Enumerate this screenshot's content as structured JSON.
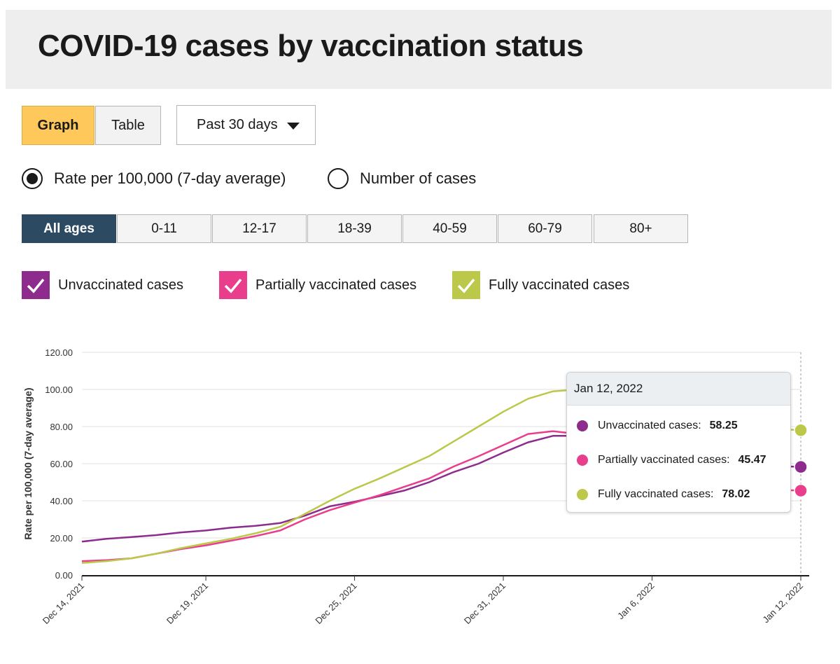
{
  "header": {
    "title": "COVID-19 cases by vaccination status"
  },
  "view_toggle": {
    "graph_label": "Graph",
    "table_label": "Table"
  },
  "period": {
    "selected": "Past 30 days"
  },
  "measure": {
    "options": [
      {
        "label": "Rate per 100,000 (7-day average)",
        "checked": true
      },
      {
        "label": "Number of cases",
        "checked": false
      }
    ]
  },
  "age_groups": [
    "All ages",
    "0-11",
    "12-17",
    "18-39",
    "40-59",
    "60-79",
    "80+"
  ],
  "age_selected": "All ages",
  "legend": [
    {
      "label": "Unvaccinated cases",
      "color": "#8e2c8e",
      "checked": true
    },
    {
      "label": "Partially vaccinated cases",
      "color": "#e83e8c",
      "checked": true
    },
    {
      "label": "Fully vaccinated cases",
      "color": "#bcc84a",
      "checked": true
    }
  ],
  "tooltip": {
    "date": "Jan 12, 2022",
    "rows": [
      {
        "label": "Unvaccinated cases:",
        "value": "58.25",
        "color": "#8e2c8e"
      },
      {
        "label": "Partially vaccinated cases:",
        "value": "45.47",
        "color": "#e83e8c"
      },
      {
        "label": "Fully vaccinated cases:",
        "value": "78.02",
        "color": "#bcc84a"
      }
    ]
  },
  "chart_data": {
    "type": "line",
    "ylabel": "Rate per 100,000 (7-day average)",
    "ylim": [
      0,
      120
    ],
    "yticks": [
      "0.00",
      "20.00",
      "40.00",
      "60.00",
      "80.00",
      "100.00",
      "120.00"
    ],
    "xticks": [
      "Dec 14, 2021",
      "Dec 19, 2021",
      "Dec 25, 2021",
      "Dec 31, 2021",
      "Jan 6, 2022",
      "Jan 12, 2022"
    ],
    "x": [
      "Dec 14, 2021",
      "Dec 15, 2021",
      "Dec 16, 2021",
      "Dec 17, 2021",
      "Dec 18, 2021",
      "Dec 19, 2021",
      "Dec 20, 2021",
      "Dec 21, 2021",
      "Dec 22, 2021",
      "Dec 23, 2021",
      "Dec 24, 2021",
      "Dec 25, 2021",
      "Dec 26, 2021",
      "Dec 27, 2021",
      "Dec 28, 2021",
      "Dec 29, 2021",
      "Dec 30, 2021",
      "Dec 31, 2021",
      "Jan 1, 2022",
      "Jan 2, 2022",
      "Jan 3, 2022",
      "Jan 4, 2022",
      "Jan 5, 2022",
      "Jan 6, 2022",
      "Jan 7, 2022",
      "Jan 8, 2022",
      "Jan 9, 2022",
      "Jan 10, 2022",
      "Jan 11, 2022",
      "Jan 12, 2022"
    ],
    "grid": true,
    "series": [
      {
        "name": "Unvaccinated cases",
        "color": "#8e2c8e",
        "values": [
          18.0,
          19.5,
          20.5,
          21.5,
          23.0,
          24.0,
          25.5,
          26.5,
          28.0,
          32.0,
          37.0,
          39.5,
          42.5,
          45.5,
          50.0,
          55.5,
          60.0,
          66.0,
          71.5,
          75.0,
          75.0,
          73.5,
          70.0,
          67.0,
          64.0,
          62.0,
          60.5,
          59.5,
          58.75,
          58.25
        ]
      },
      {
        "name": "Partially vaccinated cases",
        "color": "#e83e8c",
        "values": [
          7.5,
          8.0,
          9.0,
          11.5,
          14.0,
          16.0,
          18.5,
          21.0,
          24.0,
          30.0,
          35.0,
          39.0,
          43.0,
          47.5,
          52.0,
          58.5,
          64.0,
          70.0,
          76.0,
          77.5,
          76.0,
          72.0,
          66.0,
          60.0,
          55.0,
          51.0,
          48.5,
          47.0,
          46.0,
          45.47
        ]
      },
      {
        "name": "Fully vaccinated cases",
        "color": "#bcc84a",
        "values": [
          6.5,
          7.5,
          9.0,
          11.5,
          14.5,
          17.0,
          19.5,
          22.5,
          26.0,
          33.0,
          40.0,
          46.5,
          52.0,
          58.0,
          64.0,
          72.0,
          80.0,
          88.0,
          95.0,
          99.0,
          100.0,
          97.5,
          93.0,
          89.0,
          86.0,
          83.5,
          81.5,
          80.0,
          78.8,
          78.02
        ]
      }
    ]
  }
}
